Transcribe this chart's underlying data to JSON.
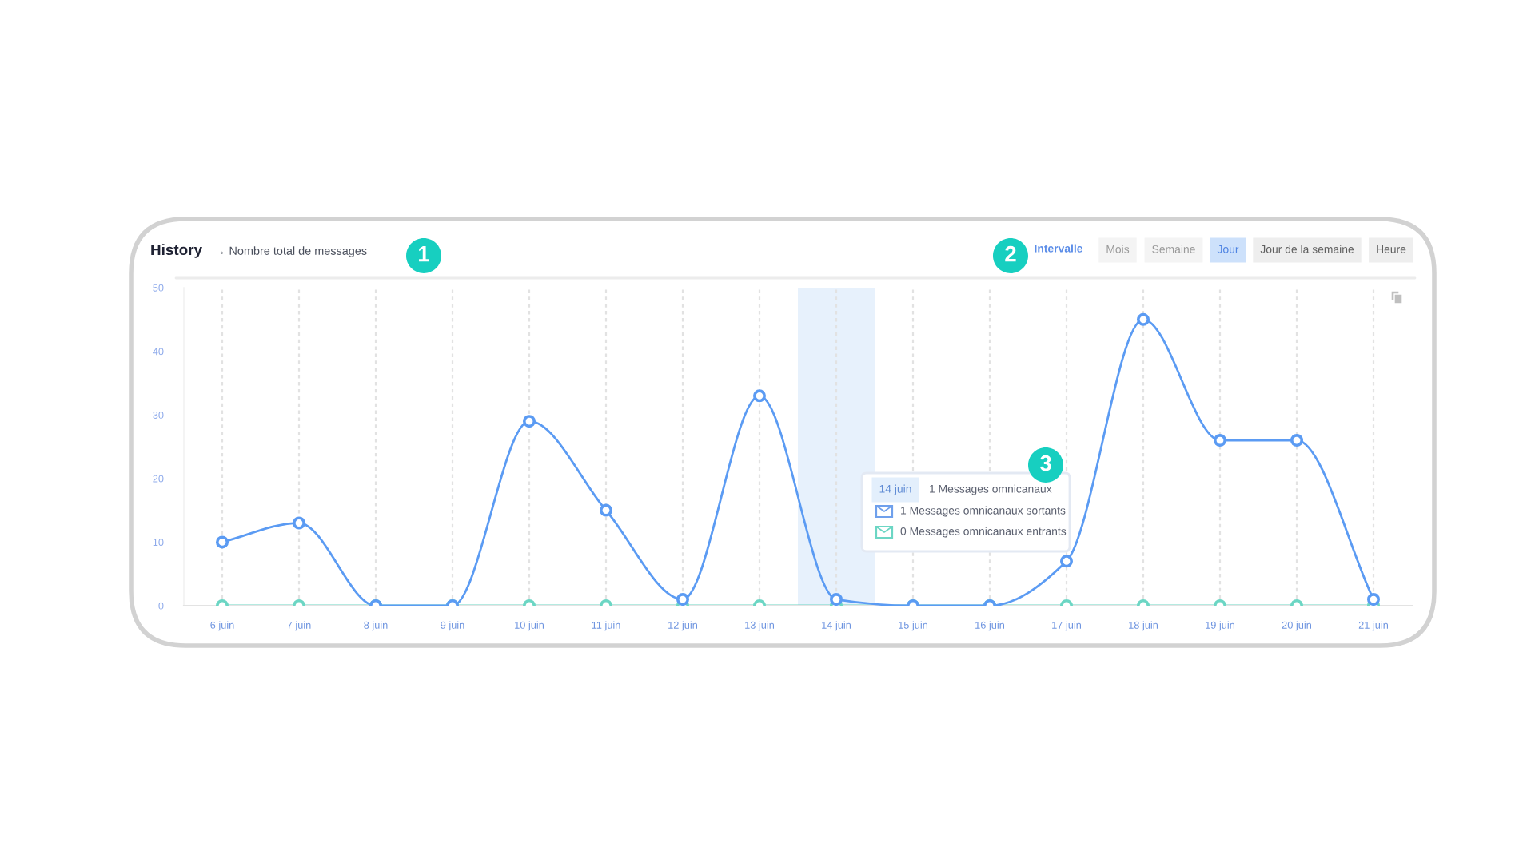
{
  "chart_data": {
    "type": "line",
    "title": "History",
    "subtitle": "→ Nombre total de messages",
    "categories": [
      "6 juin",
      "7 juin",
      "8 juin",
      "9 juin",
      "10 juin",
      "11 juin",
      "12 juin",
      "13 juin",
      "14 juin",
      "15 juin",
      "16 juin",
      "17 juin",
      "18 juin",
      "19 juin",
      "20 juin",
      "21 juin"
    ],
    "series": [
      {
        "color": "#6cd6c4",
        "values": [
          0,
          0,
          0,
          0,
          0,
          0,
          0,
          0,
          0,
          0,
          0,
          0,
          0,
          0,
          0,
          0
        ]
      },
      {
        "color": "#5b9bf3",
        "values": [
          10,
          13,
          0,
          0,
          29,
          15,
          1,
          33,
          1,
          0,
          0,
          7,
          45,
          26,
          26,
          1
        ]
      }
    ],
    "ylim": [
      0,
      50
    ],
    "yticks": [
      0,
      10,
      20,
      30,
      40,
      50
    ],
    "grid": "x",
    "marker": "circle",
    "line_style": "solid",
    "bands": [
      {
        "axis": "x",
        "from": "14 juin",
        "to": "14 juin",
        "color": "#e7f1fc"
      }
    ],
    "annotations": [
      "Intervalle",
      "Mois",
      "Semaine",
      "Jour",
      "Jour de la semaine",
      "Heure",
      "14 juin",
      "1 Messages omnicanaux",
      "1 Messages omnicanaux sortants",
      "0 Messages omnicanaux entrants",
      "1",
      "2",
      "3"
    ]
  }
}
